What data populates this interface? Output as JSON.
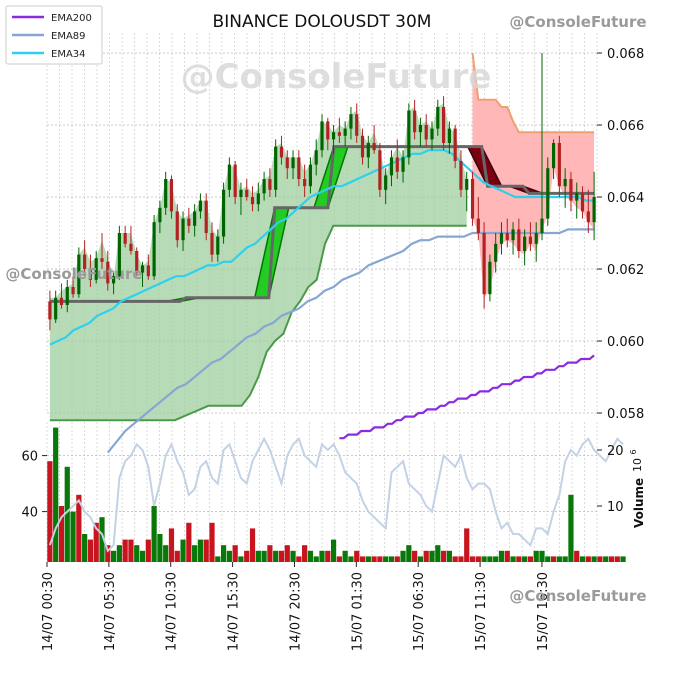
{
  "chart_data": {
    "type": "candlestick",
    "title": "BINANCE DOLOUSDT 30M",
    "watermark": "@ConsoleFuture",
    "legend": {
      "placement": "top-left",
      "entries": [
        {
          "name": "EMA200",
          "color": "#8a2be2"
        },
        {
          "name": "EMA89",
          "color": "#87a6d2"
        },
        {
          "name": "EMA34",
          "color": "#2fd0ee"
        }
      ]
    },
    "price_axis": {
      "ylim": [
        0.058,
        0.068
      ],
      "ticks": [
        "0.058",
        "0.060",
        "0.062",
        "0.064",
        "0.066",
        "0.068"
      ],
      "side": "right"
    },
    "volume_axis": {
      "label": "Volume",
      "exponent_label": "10",
      "exponent": "6",
      "right_ticks": [
        "10",
        "20"
      ],
      "left_ticks": [
        "40",
        "60"
      ]
    },
    "x_ticks": [
      "14/07 00:30",
      "14/07 05:30",
      "14/07 10:30",
      "14/07 15:30",
      "14/07 20:30",
      "15/07 01:30",
      "15/07 06:30",
      "15/07 11:30",
      "15/07 16:30"
    ],
    "grid": true,
    "colors": {
      "up": "#006400",
      "down": "#b22222",
      "support_fill": "#9fcf9f",
      "support_line": "#4a9a4a",
      "resistance_fill": "#ffb3b3",
      "resistance_line": "#f0a070",
      "level_line": "#666666",
      "volume_line": "#c3d2e4"
    },
    "candles_ohlc": [
      [
        0.0611,
        0.0614,
        0.0603,
        0.0606
      ],
      [
        0.0606,
        0.0614,
        0.0605,
        0.0612
      ],
      [
        0.0612,
        0.0616,
        0.0609,
        0.061
      ],
      [
        0.061,
        0.0617,
        0.0608,
        0.0615
      ],
      [
        0.0615,
        0.0618,
        0.0612,
        0.0613
      ],
      [
        0.0613,
        0.0626,
        0.0612,
        0.0624
      ],
      [
        0.0624,
        0.0628,
        0.0618,
        0.062
      ],
      [
        0.062,
        0.0624,
        0.0615,
        0.0617
      ],
      [
        0.0617,
        0.0625,
        0.0616,
        0.0623
      ],
      [
        0.0623,
        0.063,
        0.062,
        0.0622
      ],
      [
        0.0622,
        0.0625,
        0.0614,
        0.0616
      ],
      [
        0.0616,
        0.0619,
        0.0613,
        0.0618
      ],
      [
        0.0618,
        0.0632,
        0.0617,
        0.063
      ],
      [
        0.063,
        0.0632,
        0.0626,
        0.0627
      ],
      [
        0.0627,
        0.0632,
        0.0624,
        0.0625
      ],
      [
        0.0625,
        0.0626,
        0.0618,
        0.0619
      ],
      [
        0.0619,
        0.0622,
        0.0615,
        0.0621
      ],
      [
        0.0621,
        0.0624,
        0.0617,
        0.0618
      ],
      [
        0.0618,
        0.0635,
        0.0617,
        0.0633
      ],
      [
        0.0633,
        0.0639,
        0.063,
        0.0637
      ],
      [
        0.0637,
        0.0647,
        0.0635,
        0.0645
      ],
      [
        0.0645,
        0.0646,
        0.0634,
        0.0636
      ],
      [
        0.0636,
        0.0638,
        0.0626,
        0.0628
      ],
      [
        0.0628,
        0.0636,
        0.0625,
        0.0634
      ],
      [
        0.0634,
        0.0637,
        0.063,
        0.0632
      ],
      [
        0.0632,
        0.0638,
        0.0629,
        0.0636
      ],
      [
        0.0636,
        0.0641,
        0.0634,
        0.0639
      ],
      [
        0.0639,
        0.0641,
        0.0628,
        0.063
      ],
      [
        0.063,
        0.0633,
        0.0622,
        0.0624
      ],
      [
        0.0624,
        0.0631,
        0.0622,
        0.0629
      ],
      [
        0.0629,
        0.0644,
        0.0627,
        0.0642
      ],
      [
        0.0642,
        0.0651,
        0.064,
        0.0649
      ],
      [
        0.0649,
        0.065,
        0.0638,
        0.064
      ],
      [
        0.064,
        0.0644,
        0.0635,
        0.0642
      ],
      [
        0.0642,
        0.0645,
        0.0639,
        0.064
      ],
      [
        0.064,
        0.0643,
        0.0636,
        0.0638
      ],
      [
        0.0638,
        0.0644,
        0.0636,
        0.0641
      ],
      [
        0.0641,
        0.0647,
        0.0639,
        0.0645
      ],
      [
        0.0645,
        0.0648,
        0.064,
        0.0642
      ],
      [
        0.0642,
        0.0656,
        0.064,
        0.0654
      ],
      [
        0.0654,
        0.0657,
        0.0649,
        0.0651
      ],
      [
        0.0651,
        0.0653,
        0.0645,
        0.0648
      ],
      [
        0.0648,
        0.0653,
        0.0645,
        0.0651
      ],
      [
        0.0651,
        0.0653,
        0.0643,
        0.0645
      ],
      [
        0.0645,
        0.0649,
        0.064,
        0.0643
      ],
      [
        0.0643,
        0.0651,
        0.0641,
        0.0649
      ],
      [
        0.0649,
        0.0656,
        0.0646,
        0.0653
      ],
      [
        0.0653,
        0.0663,
        0.0651,
        0.0661
      ],
      [
        0.0661,
        0.0662,
        0.0653,
        0.0656
      ],
      [
        0.0656,
        0.066,
        0.0652,
        0.0658
      ],
      [
        0.0658,
        0.0662,
        0.0655,
        0.0657
      ],
      [
        0.0657,
        0.0661,
        0.0654,
        0.0659
      ],
      [
        0.0659,
        0.0665,
        0.0656,
        0.0663
      ],
      [
        0.0663,
        0.0666,
        0.0655,
        0.0657
      ],
      [
        0.0657,
        0.0659,
        0.0649,
        0.0651
      ],
      [
        0.0651,
        0.0657,
        0.0648,
        0.0655
      ],
      [
        0.0655,
        0.066,
        0.0652,
        0.0653
      ],
      [
        0.0653,
        0.0655,
        0.064,
        0.0642
      ],
      [
        0.0642,
        0.0648,
        0.0638,
        0.0646
      ],
      [
        0.0646,
        0.0653,
        0.0643,
        0.0651
      ],
      [
        0.0651,
        0.0656,
        0.0645,
        0.0647
      ],
      [
        0.0647,
        0.0653,
        0.0644,
        0.0651
      ],
      [
        0.0651,
        0.0666,
        0.0649,
        0.0664
      ],
      [
        0.0664,
        0.0667,
        0.0656,
        0.0658
      ],
      [
        0.0658,
        0.0662,
        0.0654,
        0.066
      ],
      [
        0.066,
        0.0663,
        0.0654,
        0.0656
      ],
      [
        0.0656,
        0.0661,
        0.0653,
        0.0659
      ],
      [
        0.0659,
        0.0667,
        0.0657,
        0.0665
      ],
      [
        0.0665,
        0.0668,
        0.0653,
        0.0655
      ],
      [
        0.0655,
        0.0661,
        0.0652,
        0.0659
      ],
      [
        0.0659,
        0.066,
        0.0648,
        0.065
      ],
      [
        0.065,
        0.0653,
        0.064,
        0.0642
      ],
      [
        0.0642,
        0.0647,
        0.0636,
        0.0645
      ],
      [
        0.0645,
        0.0647,
        0.0632,
        0.0634
      ],
      [
        0.0634,
        0.064,
        0.0628,
        0.063
      ],
      [
        0.063,
        0.0633,
        0.0609,
        0.0613
      ],
      [
        0.0613,
        0.0624,
        0.0611,
        0.0622
      ],
      [
        0.0622,
        0.063,
        0.0619,
        0.0627
      ],
      [
        0.0627,
        0.0633,
        0.0624,
        0.063
      ],
      [
        0.063,
        0.0634,
        0.0626,
        0.0628
      ],
      [
        0.0628,
        0.0633,
        0.0624,
        0.0631
      ],
      [
        0.0631,
        0.0634,
        0.0623,
        0.0625
      ],
      [
        0.0625,
        0.0631,
        0.0621,
        0.0629
      ],
      [
        0.0629,
        0.0633,
        0.0625,
        0.0627
      ],
      [
        0.0627,
        0.0633,
        0.0622,
        0.063
      ],
      [
        0.063,
        0.068,
        0.0628,
        0.0634
      ],
      [
        0.0634,
        0.0651,
        0.0632,
        0.0648
      ],
      [
        0.0648,
        0.0656,
        0.0645,
        0.0655
      ],
      [
        0.0655,
        0.0657,
        0.064,
        0.0643
      ],
      [
        0.0643,
        0.0648,
        0.0637,
        0.0645
      ],
      [
        0.0645,
        0.0647,
        0.0636,
        0.0639
      ],
      [
        0.0639,
        0.0644,
        0.0634,
        0.0641
      ],
      [
        0.0641,
        0.0643,
        0.0634,
        0.0636
      ],
      [
        0.0636,
        0.0642,
        0.063,
        0.0633
      ],
      [
        0.0633,
        0.0647,
        0.0628,
        0.064
      ]
    ],
    "ema200": [
      0.0573,
      0.0573,
      0.0574,
      0.0574,
      0.0574,
      0.0575,
      0.0575,
      0.0575,
      0.0576,
      0.0576,
      0.0576,
      0.0577,
      0.0577,
      0.0578,
      0.0578,
      0.0579,
      0.0579,
      0.0579,
      0.058,
      0.058,
      0.0581,
      0.0581,
      0.0581,
      0.0582,
      0.0582,
      0.0583,
      0.0583,
      0.0584,
      0.0584,
      0.0584,
      0.0585,
      0.0585,
      0.0586,
      0.0586,
      0.0586,
      0.0587,
      0.0587,
      0.0588,
      0.0588,
      0.0588,
      0.0589,
      0.0589,
      0.059,
      0.059,
      0.059,
      0.0591,
      0.0591,
      0.0592,
      0.0592,
      0.0592,
      0.0593,
      0.0593,
      0.0594,
      0.0594,
      0.0594,
      0.0595,
      0.0595,
      0.0595,
      0.0596
    ],
    "ema89": [
      0.0569,
      0.0572,
      0.0575,
      0.0577,
      0.0579,
      0.0581,
      0.0583,
      0.0585,
      0.0587,
      0.0588,
      0.059,
      0.0592,
      0.0594,
      0.0595,
      0.0597,
      0.0599,
      0.0601,
      0.0602,
      0.0604,
      0.0605,
      0.0607,
      0.0608,
      0.0609,
      0.0611,
      0.0612,
      0.0614,
      0.0615,
      0.0617,
      0.0618,
      0.0619,
      0.0621,
      0.0622,
      0.0623,
      0.0624,
      0.0625,
      0.0627,
      0.0628,
      0.0628,
      0.0629,
      0.0629,
      0.0629,
      0.0629,
      0.063,
      0.063,
      0.063,
      0.063,
      0.063,
      0.063,
      0.063,
      0.063,
      0.063,
      0.063,
      0.063,
      0.0631,
      0.0631,
      0.0631,
      0.0631
    ],
    "ema34": [
      0.0599,
      0.06,
      0.0601,
      0.0603,
      0.0604,
      0.0605,
      0.0607,
      0.0608,
      0.0609,
      0.0611,
      0.0612,
      0.0613,
      0.0614,
      0.0615,
      0.0616,
      0.0617,
      0.0618,
      0.0618,
      0.0619,
      0.062,
      0.0621,
      0.0621,
      0.0622,
      0.0622,
      0.0624,
      0.0626,
      0.0627,
      0.0629,
      0.0631,
      0.0633,
      0.0634,
      0.0636,
      0.0638,
      0.064,
      0.0641,
      0.0642,
      0.0643,
      0.0643,
      0.0644,
      0.0645,
      0.0646,
      0.0647,
      0.0648,
      0.0649,
      0.065,
      0.0651,
      0.0652,
      0.0652,
      0.0653,
      0.0653,
      0.0653,
      0.0652,
      0.065,
      0.0648,
      0.0646,
      0.0644,
      0.0643,
      0.0642,
      0.0641,
      0.064,
      0.064,
      0.064,
      0.064,
      0.064,
      0.064,
      0.064,
      0.064,
      0.064,
      0.0639,
      0.0639
    ],
    "support_line": [
      0.0578,
      0.0578,
      0.0578,
      0.0578,
      0.0578,
      0.0578,
      0.0578,
      0.0578,
      0.0578,
      0.0578,
      0.0578,
      0.0578,
      0.0578,
      0.0578,
      0.0578,
      0.0578,
      0.0579,
      0.058,
      0.0581,
      0.0582,
      0.0582,
      0.0582,
      0.0582,
      0.0582,
      0.0585,
      0.059,
      0.0597,
      0.06,
      0.0602,
      0.0608,
      0.0611,
      0.0615,
      0.0617,
      0.0627,
      0.0632,
      0.0632,
      0.0632,
      0.0632,
      0.0632,
      0.0632,
      0.0632,
      0.0632,
      0.0632,
      0.0632,
      0.0632,
      0.0632,
      0.0632,
      0.0632,
      0.0632,
      0.0632,
      0.0632
    ],
    "level_line": [
      0.0611,
      0.0611,
      0.0611,
      0.0611,
      0.0611,
      0.0611,
      0.0611,
      0.0611,
      0.0611,
      0.0611,
      0.0611,
      0.0611,
      0.0611,
      0.0611,
      0.0611,
      0.0611,
      0.0611,
      0.0611,
      0.0611,
      0.0611,
      0.0611,
      0.0611,
      0.0611,
      0.0612,
      0.0612,
      0.0612,
      0.0612,
      0.0612,
      0.0612,
      0.0612,
      0.0612,
      0.0612,
      0.0612,
      0.0612,
      0.0612,
      0.0612,
      0.0612,
      0.0612,
      0.0637,
      0.0637,
      0.0637,
      0.0637,
      0.0637,
      0.0637,
      0.0637,
      0.0637,
      0.0637,
      0.0637,
      0.0654,
      0.0654,
      0.0654,
      0.0654,
      0.0654,
      0.0654,
      0.0654,
      0.0654,
      0.0654,
      0.0654,
      0.0654,
      0.0654,
      0.0654,
      0.0654,
      0.0654,
      0.0654,
      0.0654,
      0.0654,
      0.0654,
      0.0654,
      0.0654,
      0.0654,
      0.0654,
      0.0654,
      0.0654,
      0.0654,
      0.0643,
      0.0643,
      0.0643,
      0.0643,
      0.0643,
      0.0643,
      0.0643,
      0.0641,
      0.0641,
      0.0641,
      0.0641,
      0.0641,
      0.0641,
      0.0641,
      0.0641,
      0.0641,
      0.0641,
      0.0641,
      0.0641
    ],
    "resistance_line": [
      0.068,
      0.0667,
      0.0667,
      0.0667,
      0.0667,
      0.0665,
      0.0665,
      0.0661,
      0.0658,
      0.0658,
      0.0658,
      0.0658,
      0.0658,
      0.0658,
      0.0658,
      0.0658,
      0.0658,
      0.0658,
      0.0658,
      0.0658,
      0.0658,
      0.0658
    ],
    "volume_millions": [
      18,
      24,
      10,
      17,
      9,
      12,
      5,
      4,
      7,
      8,
      3,
      2,
      3,
      4,
      4,
      3,
      2,
      4,
      10,
      5,
      3,
      6,
      2,
      4,
      7,
      3,
      4,
      4,
      7,
      1,
      3,
      2,
      3,
      1,
      2,
      6,
      2,
      2,
      3,
      2,
      2,
      3,
      2,
      1,
      3,
      2,
      1,
      2,
      2,
      4,
      1,
      2,
      1,
      2,
      1,
      1,
      1,
      1,
      1,
      1,
      1,
      2,
      3,
      2,
      1,
      2,
      2,
      3,
      2,
      2,
      1,
      1,
      6,
      1,
      1,
      1,
      1,
      1,
      2,
      2,
      1,
      1,
      1,
      1,
      2,
      2,
      1,
      1,
      1,
      1,
      12,
      2,
      1,
      1,
      1,
      1,
      1,
      1,
      1,
      1
    ],
    "volume_line_millions": [
      3,
      6,
      8,
      9,
      10,
      11,
      9,
      8,
      6,
      5,
      2,
      3,
      15,
      18,
      19,
      21,
      20,
      17,
      10,
      14,
      19,
      21,
      18,
      16,
      12,
      13,
      17,
      18,
      15,
      14,
      20,
      21,
      18,
      15,
      14,
      18,
      20,
      22,
      20,
      17,
      14,
      19,
      21,
      22,
      19,
      18,
      17,
      21,
      20,
      21,
      19,
      16,
      15,
      14,
      11,
      9,
      8,
      7,
      6,
      16,
      17,
      18,
      14,
      13,
      12,
      10,
      9,
      14,
      19,
      18,
      17,
      19,
      15,
      13,
      14,
      14,
      13,
      9,
      6,
      7,
      5,
      5,
      4,
      3,
      6,
      6,
      5,
      9,
      12,
      18,
      20,
      19,
      21,
      22,
      20,
      19,
      18,
      20,
      22,
      21
    ],
    "volume_marks": [
      1,
      0,
      1,
      0,
      0,
      1,
      0,
      1,
      1,
      0,
      1,
      0,
      0,
      1,
      1,
      0,
      0,
      1,
      0,
      0,
      0,
      1,
      1,
      0,
      1,
      0,
      0,
      1,
      1,
      0,
      0,
      0,
      1,
      0,
      1,
      1,
      0,
      0,
      1,
      0,
      1,
      1,
      0,
      1,
      1,
      0,
      0,
      0,
      1,
      0,
      1,
      0,
      0,
      1,
      1,
      0,
      1,
      1,
      0,
      0,
      1,
      0,
      0,
      1,
      0,
      1,
      0,
      0,
      1,
      0,
      1,
      1,
      1,
      1,
      1,
      0,
      0,
      0,
      0,
      1,
      0,
      1,
      0,
      1,
      0,
      0,
      0,
      1,
      0,
      0,
      0,
      1,
      0,
      1,
      0,
      1,
      0,
      1,
      1,
      0
    ]
  }
}
